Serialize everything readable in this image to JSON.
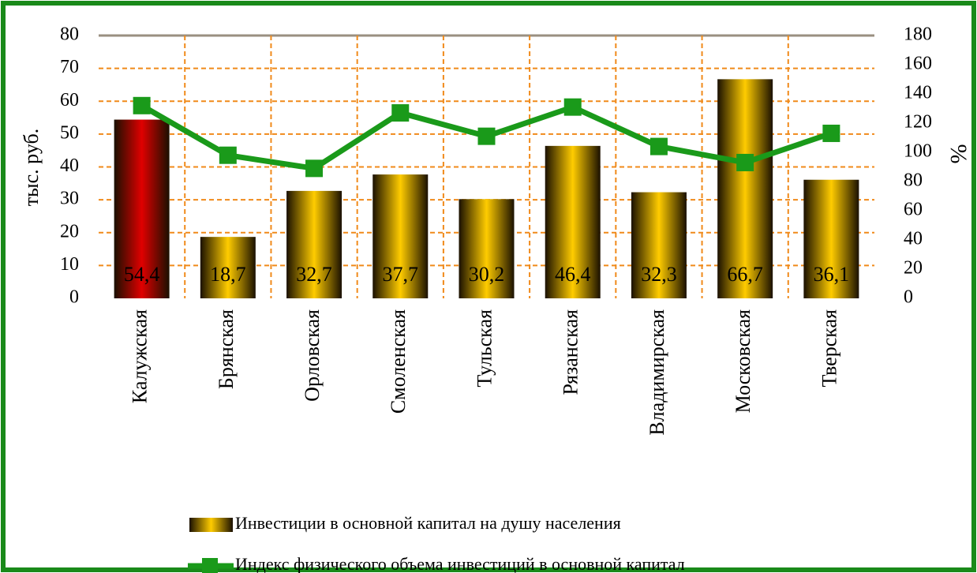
{
  "chart_data": {
    "type": "bar_line",
    "categories": [
      "Калужская",
      "Брянская",
      "Орловская",
      "Смоленская",
      "Тульская",
      "Рязанская",
      "Владимирская",
      "Московская",
      "Тверская"
    ],
    "y_label": "тыс. руб.",
    "y2_label": "%",
    "ylim": [
      0,
      80
    ],
    "yticks": [
      0,
      10,
      20,
      30,
      40,
      50,
      60,
      70,
      80
    ],
    "y2lim": [
      0,
      180
    ],
    "y2ticks": [
      0,
      20,
      40,
      60,
      80,
      100,
      120,
      140,
      160,
      180
    ],
    "grid": true,
    "series": [
      {
        "name": "Инвестиции в основной капитал на душу населения",
        "type": "bar",
        "color": "#ffcc00",
        "point_colors": [
          "#e00000",
          "#ffcc00",
          "#ffcc00",
          "#ffcc00",
          "#ffcc00",
          "#ffcc00",
          "#ffcc00",
          "#ffcc00",
          "#ffcc00"
        ],
        "values": [
          54.4,
          18.7,
          32.7,
          37.7,
          30.2,
          46.4,
          32.3,
          66.7,
          36.1
        ],
        "value_labels": [
          "54,4",
          "18,7",
          "32,7",
          "37,7",
          "30,2",
          "46,4",
          "32,3",
          "66,7",
          "36,1"
        ]
      },
      {
        "name": "Индекс физического объема инвестиций в основной капитал",
        "type": "line",
        "axis": "y2",
        "color": "#1a9a1a",
        "values": [
          132,
          98,
          89,
          127,
          111,
          131,
          104,
          93,
          113
        ]
      }
    ]
  }
}
